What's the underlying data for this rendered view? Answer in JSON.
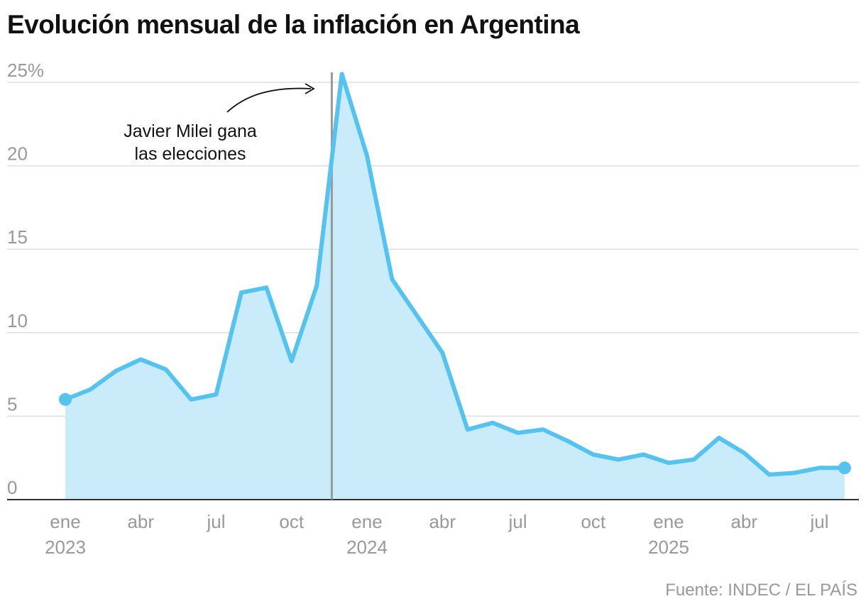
{
  "title": "Evolución mensual de la inflación en Argentina",
  "source": "Fuente: INDEC / EL PAÍS",
  "chart_data": {
    "type": "area",
    "title": "Evolución mensual de la inflación en Argentina",
    "x_start": "2023-01",
    "x": [
      "2023-01",
      "2023-02",
      "2023-03",
      "2023-04",
      "2023-05",
      "2023-06",
      "2023-07",
      "2023-08",
      "2023-09",
      "2023-10",
      "2023-11",
      "2023-12",
      "2024-01",
      "2024-02",
      "2024-03",
      "2024-04",
      "2024-05",
      "2024-06",
      "2024-07",
      "2024-08",
      "2024-09",
      "2024-10",
      "2024-11",
      "2024-12",
      "2025-01",
      "2025-02",
      "2025-03",
      "2025-04",
      "2025-05",
      "2025-06",
      "2025-07",
      "2025-08"
    ],
    "values": [
      6.0,
      6.6,
      7.7,
      8.4,
      7.8,
      6.0,
      6.3,
      12.4,
      12.7,
      8.3,
      12.8,
      25.5,
      20.6,
      13.2,
      11.0,
      8.8,
      4.2,
      4.6,
      4.0,
      4.2,
      3.5,
      2.7,
      2.4,
      2.7,
      2.2,
      2.4,
      3.7,
      2.8,
      1.5,
      1.6,
      1.9,
      1.9
    ],
    "ylim": [
      0,
      25
    ],
    "yticks": [
      0,
      5,
      10,
      15,
      20,
      25
    ],
    "ytick_labels": [
      "0",
      "5",
      "10",
      "15",
      "20",
      "25%"
    ],
    "xticks": [
      {
        "month": "2023-01",
        "label": "ene",
        "year": "2023"
      },
      {
        "month": "2023-04",
        "label": "abr"
      },
      {
        "month": "2023-07",
        "label": "jul"
      },
      {
        "month": "2023-10",
        "label": "oct"
      },
      {
        "month": "2024-01",
        "label": "ene",
        "year": "2024"
      },
      {
        "month": "2024-04",
        "label": "abr"
      },
      {
        "month": "2024-07",
        "label": "jul"
      },
      {
        "month": "2024-10",
        "label": "oct"
      },
      {
        "month": "2025-01",
        "label": "ene",
        "year": "2025"
      },
      {
        "month": "2025-04",
        "label": "abr"
      },
      {
        "month": "2025-07",
        "label": "jul"
      }
    ],
    "grid": true,
    "annotation": {
      "date": "2023-11-19",
      "lines": [
        "Javier Milei gana",
        "las elecciones"
      ]
    },
    "colors": {
      "line": "#55c3f0",
      "fill": "#c9ebfa",
      "grid": "#dddddd",
      "marker": "#999999",
      "axis_text": "#999999"
    }
  }
}
